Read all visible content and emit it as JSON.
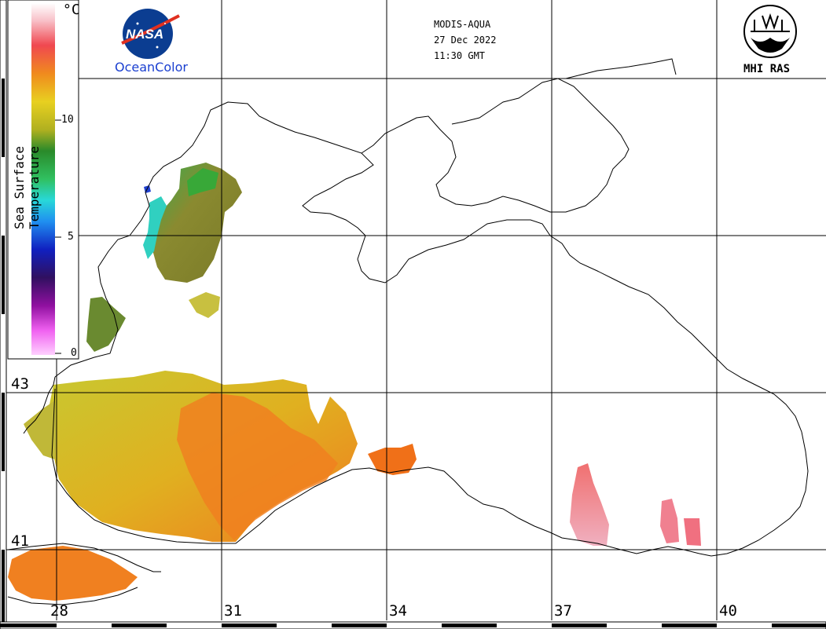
{
  "header": {
    "satellite": "MODIS-AQUA",
    "date": "27 Dec 2022",
    "time": "11:30 GMT"
  },
  "logos": {
    "nasa_text": "NASA",
    "oceancolor": "OceanColor",
    "mhi": "MHI RAS"
  },
  "colorbar": {
    "title": "Sea Surface Temperature",
    "unit": "°C",
    "ticks": [
      "10",
      "5",
      "0"
    ]
  },
  "longitude_labels": [
    "28",
    "31",
    "34",
    "37",
    "40"
  ],
  "latitude_labels": [
    "43",
    "41"
  ],
  "colors": {
    "grid": "#000000",
    "coast": "#000000",
    "warm": "#f08a1e",
    "mid": "#d8c020",
    "cool": "#7a8a2a",
    "hot": "#ee6070"
  }
}
